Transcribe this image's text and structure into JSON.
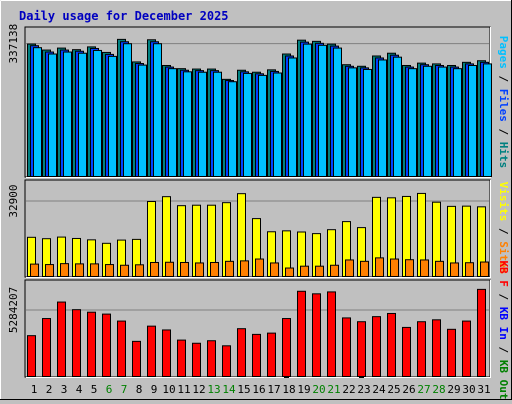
{
  "title": "Daily usage for December 2025",
  "colors": {
    "background": "#c0c0c0",
    "title": "#0000c0",
    "pages": "#00c0ff",
    "files": "#0040ff",
    "hits": "#008080",
    "sites": "#ff8000",
    "visits": "#ffff00",
    "kb": "#ff0000",
    "kb_in": "#0000ff",
    "kb_out": "#008000",
    "weekend_label": "#008000",
    "weekday_label": "#000000"
  },
  "chart_data": [
    {
      "type": "bar",
      "panel": "hits-files-pages",
      "title": "Daily usage for December 2025",
      "ylabel_parts": [
        "Pages",
        "Files",
        "Hits"
      ],
      "ytick_label": "337138",
      "ylim": [
        0,
        379000
      ],
      "categories": [
        "1",
        "2",
        "3",
        "4",
        "5",
        "6",
        "7",
        "8",
        "9",
        "10",
        "11",
        "12",
        "13",
        "14",
        "15",
        "16",
        "17",
        "18",
        "19",
        "20",
        "21",
        "22",
        "23",
        "24",
        "25",
        "26",
        "27",
        "28",
        "29",
        "30",
        "31"
      ],
      "weekend_days": [
        6,
        7,
        13,
        14,
        20,
        21,
        27,
        28
      ],
      "series": [
        {
          "name": "Hits",
          "values": [
            337138,
            322000,
            327000,
            323000,
            330000,
            316000,
            349000,
            292000,
            348000,
            283000,
            275000,
            274000,
            274000,
            248000,
            271000,
            266000,
            272000,
            312000,
            347000,
            344000,
            337000,
            285000,
            281000,
            307000,
            314000,
            283000,
            289000,
            287000,
            283000,
            291000,
            295000
          ]
        },
        {
          "name": "Files",
          "values": [
            333000,
            317000,
            322000,
            319000,
            326000,
            311000,
            343000,
            288000,
            343000,
            279000,
            271000,
            270000,
            270000,
            245000,
            267000,
            262000,
            268000,
            307000,
            342000,
            339000,
            332000,
            281000,
            277000,
            302000,
            309000,
            279000,
            285000,
            283000,
            279000,
            287000,
            291000
          ]
        },
        {
          "name": "Pages",
          "values": [
            328000,
            312000,
            317000,
            314000,
            321000,
            306000,
            338000,
            284000,
            338000,
            275000,
            267000,
            266000,
            266000,
            242000,
            263000,
            258000,
            264000,
            302000,
            337000,
            334000,
            327000,
            277000,
            273000,
            297000,
            304000,
            275000,
            281000,
            279000,
            275000,
            283000,
            287000
          ]
        }
      ]
    },
    {
      "type": "bar",
      "panel": "visits-sites",
      "ylabel_parts": [
        "Visits",
        "Sites"
      ],
      "ytick_label": "32900",
      "ylim": [
        0,
        42000
      ],
      "categories": [
        "1",
        "2",
        "3",
        "4",
        "5",
        "6",
        "7",
        "8",
        "9",
        "10",
        "11",
        "12",
        "13",
        "14",
        "15",
        "16",
        "17",
        "18",
        "19",
        "20",
        "21",
        "22",
        "23",
        "24",
        "25",
        "26",
        "27",
        "28",
        "29",
        "30",
        "31"
      ],
      "series": [
        {
          "name": "Visits",
          "values": [
            17400,
            16800,
            17500,
            16900,
            16300,
            14800,
            16200,
            16500,
            32900,
            35000,
            31100,
            31300,
            31300,
            32400,
            36300,
            25500,
            19800,
            20200,
            19700,
            19000,
            20700,
            24200,
            21600,
            34700,
            34500,
            35100,
            36400,
            32600,
            30800,
            30900,
            30600
          ]
        },
        {
          "name": "Sites",
          "values": [
            5800,
            5600,
            6000,
            5900,
            5900,
            5600,
            5300,
            5500,
            6500,
            6600,
            6500,
            6300,
            6500,
            7000,
            7200,
            8000,
            6300,
            4100,
            4900,
            4900,
            5300,
            7600,
            7000,
            8500,
            8000,
            7700,
            7600,
            7000,
            6300,
            6400,
            6700
          ]
        }
      ]
    },
    {
      "type": "bar",
      "panel": "kbf-kbin-kbout",
      "ylabel_parts": [
        "KB F",
        "KB In",
        "KB Out"
      ],
      "ytick_label": "5284207",
      "ylim": [
        0,
        7650000
      ],
      "categories": [
        "1",
        "2",
        "3",
        "4",
        "5",
        "6",
        "7",
        "8",
        "9",
        "10",
        "11",
        "12",
        "13",
        "14",
        "15",
        "16",
        "17",
        "18",
        "19",
        "20",
        "21",
        "22",
        "23",
        "24",
        "25",
        "26",
        "27",
        "28",
        "29",
        "30",
        "31"
      ],
      "series": [
        {
          "name": "KB F",
          "values": [
            3300000,
            4650000,
            5950000,
            5350000,
            5150000,
            5000000,
            4450000,
            2850000,
            4050000,
            3750000,
            2950000,
            2700000,
            2900000,
            2500000,
            3850000,
            3400000,
            3500000,
            4650000,
            6800000,
            6600000,
            6750000,
            4700000,
            4400000,
            4800000,
            5050000,
            3950000,
            4400000,
            4550000,
            3800000,
            4450000,
            6950000
          ]
        },
        {
          "name": "KB In",
          "values": [
            0,
            0,
            0,
            0,
            0,
            0,
            0,
            0,
            0,
            0,
            0,
            0,
            0,
            0,
            0,
            0,
            0,
            80000,
            0,
            0,
            0,
            0,
            80000,
            0,
            0,
            0,
            0,
            0,
            0,
            0,
            0
          ]
        },
        {
          "name": "KB Out",
          "values": [
            0,
            0,
            0,
            0,
            0,
            0,
            0,
            0,
            0,
            0,
            0,
            0,
            0,
            0,
            0,
            0,
            0,
            0,
            0,
            0,
            0,
            0,
            0,
            0,
            0,
            0,
            0,
            0,
            0,
            0,
            0
          ]
        }
      ]
    }
  ]
}
